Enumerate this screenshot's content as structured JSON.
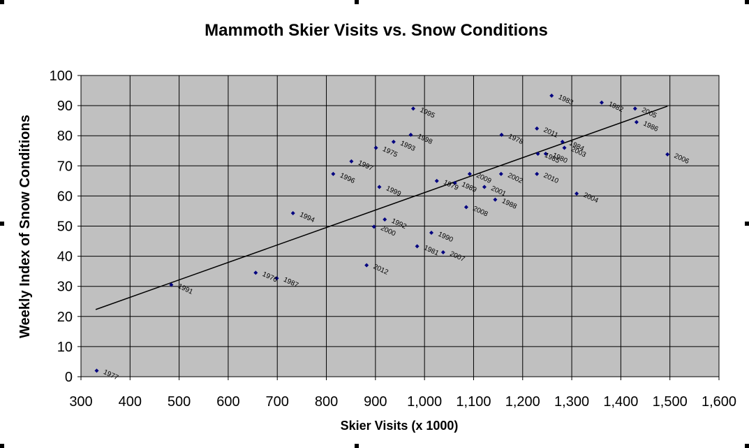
{
  "chart_data": {
    "type": "scatter",
    "title": "Mammoth Skier Visits vs. Snow Conditions",
    "xlabel": "Skier Visits (x 1000)",
    "ylabel": "Weekly Index of Snow Conditions",
    "xlim": [
      300,
      1600
    ],
    "ylim": [
      0,
      100
    ],
    "x_ticks": [
      "300",
      "400",
      "500",
      "600",
      "700",
      "800",
      "900",
      "1,000",
      "1,100",
      "1,200",
      "1,300",
      "1,400",
      "1,500",
      "1,600"
    ],
    "y_ticks": [
      "0",
      "10",
      "20",
      "30",
      "40",
      "50",
      "60",
      "70",
      "80",
      "90",
      "100"
    ],
    "grid": true,
    "legend": "none",
    "colors": {
      "plot_bg": "#c0c0c0",
      "marker": "#000080",
      "grid": "#000000",
      "trendline": "#000000"
    },
    "trendline": {
      "x": [
        330,
        1495
      ],
      "y": [
        22.3,
        89.8
      ]
    },
    "points": [
      {
        "label": "1977",
        "x": 332,
        "y": 2
      },
      {
        "label": "1991",
        "x": 484,
        "y": 30.5
      },
      {
        "label": "1976",
        "x": 656,
        "y": 34.5
      },
      {
        "label": "1987",
        "x": 699,
        "y": 32.7
      },
      {
        "label": "1994",
        "x": 732,
        "y": 54.3
      },
      {
        "label": "1996",
        "x": 814,
        "y": 67.3
      },
      {
        "label": "1997",
        "x": 851,
        "y": 71.5
      },
      {
        "label": "2012",
        "x": 882,
        "y": 37
      },
      {
        "label": "2000",
        "x": 897,
        "y": 49.8
      },
      {
        "label": "1975",
        "x": 901,
        "y": 76
      },
      {
        "label": "1999",
        "x": 908,
        "y": 63
      },
      {
        "label": "1992",
        "x": 919,
        "y": 52.2
      },
      {
        "label": "1993",
        "x": 937,
        "y": 78
      },
      {
        "label": "1998",
        "x": 972,
        "y": 80.3
      },
      {
        "label": "1995",
        "x": 977,
        "y": 89
      },
      {
        "label": "1981",
        "x": 985,
        "y": 43.3
      },
      {
        "label": "1990",
        "x": 1014,
        "y": 47.8
      },
      {
        "label": "1979",
        "x": 1025,
        "y": 65
      },
      {
        "label": "2007",
        "x": 1038,
        "y": 41.3
      },
      {
        "label": "1989",
        "x": 1062,
        "y": 64.3
      },
      {
        "label": "2008",
        "x": 1085,
        "y": 56.3
      },
      {
        "label": "2009",
        "x": 1092,
        "y": 67.3
      },
      {
        "label": "2001",
        "x": 1122,
        "y": 63
      },
      {
        "label": "1988",
        "x": 1144,
        "y": 58.8
      },
      {
        "label": "2002",
        "x": 1156,
        "y": 67.3
      },
      {
        "label": "1978",
        "x": 1157,
        "y": 80.3
      },
      {
        "label": "2010",
        "x": 1229,
        "y": 67.3
      },
      {
        "label": "2011",
        "x": 1229,
        "y": 82.4
      },
      {
        "label": "1985",
        "x": 1231,
        "y": 74
      },
      {
        "label": "1980",
        "x": 1247,
        "y": 74
      },
      {
        "label": "1983",
        "x": 1259,
        "y": 93.3
      },
      {
        "label": "1984",
        "x": 1281,
        "y": 78
      },
      {
        "label": "2003",
        "x": 1285,
        "y": 76
      },
      {
        "label": "2004",
        "x": 1310,
        "y": 60.8
      },
      {
        "label": "1982",
        "x": 1361,
        "y": 91
      },
      {
        "label": "2005",
        "x": 1429,
        "y": 89
      },
      {
        "label": "1986",
        "x": 1432,
        "y": 84.5
      },
      {
        "label": "2006",
        "x": 1495,
        "y": 73.8
      }
    ]
  }
}
